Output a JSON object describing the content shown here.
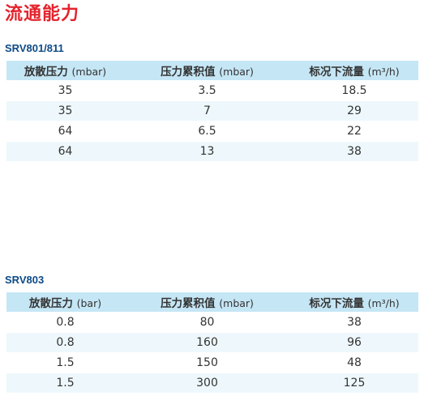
{
  "page_title": "流通能力",
  "colors": {
    "title": "#e4232c",
    "section_title": "#0d4a87",
    "header_bg": "#c5e6f5",
    "stripe_bg": "#eef8fc"
  },
  "tables": [
    {
      "model": "SRV801/811",
      "headers": [
        {
          "label": "放散压力",
          "unit": "(mbar)"
        },
        {
          "label": "压力累积值",
          "unit": "(mbar)"
        },
        {
          "label": "标况下流量",
          "unit": "(m³/h)"
        }
      ],
      "rows": [
        [
          "35",
          "3.5",
          "18.5"
        ],
        [
          "35",
          "7",
          "29"
        ],
        [
          "64",
          "6.5",
          "22"
        ],
        [
          "64",
          "13",
          "38"
        ]
      ]
    },
    {
      "model": "SRV803",
      "headers": [
        {
          "label": "放散压力",
          "unit": "(bar)"
        },
        {
          "label": "压力累积值",
          "unit": "(mbar)"
        },
        {
          "label": "标况下流量",
          "unit": "(m³/h)"
        }
      ],
      "rows": [
        [
          "0.8",
          "80",
          "38"
        ],
        [
          "0.8",
          "160",
          "96"
        ],
        [
          "1.5",
          "150",
          "48"
        ],
        [
          "1.5",
          "300",
          "125"
        ]
      ]
    }
  ]
}
